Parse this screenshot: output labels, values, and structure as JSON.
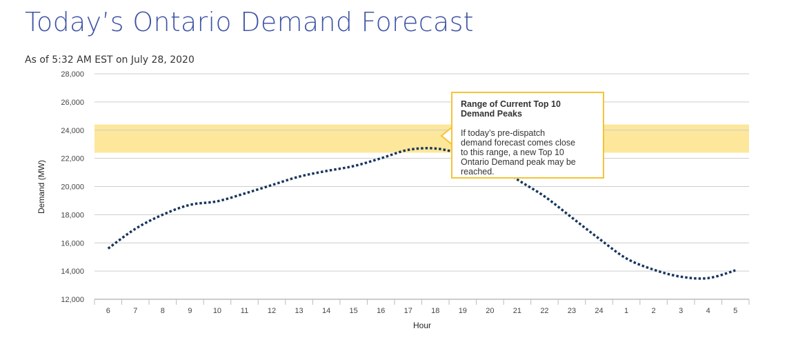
{
  "header": {
    "title": "Today’s Ontario Demand Forecast",
    "as_of": "As of 5:32 AM EST on July 28, 2020"
  },
  "tooltip": {
    "title": "Range of Current Top 10 Demand Peaks",
    "body": "If today’s pre-dispatch demand forecast comes close to this range, a new Top 10 Ontario Demand peak may be reached."
  },
  "colors": {
    "line": "#17365d",
    "band": "#fde79b",
    "tooltip_border": "#f5c335",
    "title": "#3f54a5",
    "grid": "#cccccc"
  },
  "chart_data": {
    "type": "line",
    "xlabel": "Hour",
    "ylabel": "Demand (MW)",
    "ylim": [
      12000,
      28000
    ],
    "yticks": [
      12000,
      14000,
      16000,
      18000,
      20000,
      22000,
      24000,
      26000,
      28000
    ],
    "ytick_labels": [
      "12,000",
      "14,000",
      "16,000",
      "18,000",
      "20,000",
      "22,000",
      "24,000",
      "26,000",
      "28,000"
    ],
    "categories": [
      "6",
      "7",
      "8",
      "9",
      "10",
      "11",
      "12",
      "13",
      "14",
      "15",
      "16",
      "17",
      "18",
      "19",
      "20",
      "21",
      "22",
      "23",
      "24",
      "1",
      "2",
      "3",
      "4",
      "5"
    ],
    "series": [
      {
        "values": [
          15600,
          17000,
          18000,
          18700,
          18950,
          19500,
          20100,
          20700,
          21100,
          21450,
          22000,
          22600,
          22700,
          22300,
          21800,
          20500,
          19300,
          17800,
          16300,
          14900,
          14100,
          13600,
          13500,
          14050
        ]
      }
    ],
    "band": {
      "label": "Range of Current Top 10 Demand Peaks",
      "low": 22400,
      "high": 24400
    },
    "grid": true,
    "legend": "none"
  }
}
